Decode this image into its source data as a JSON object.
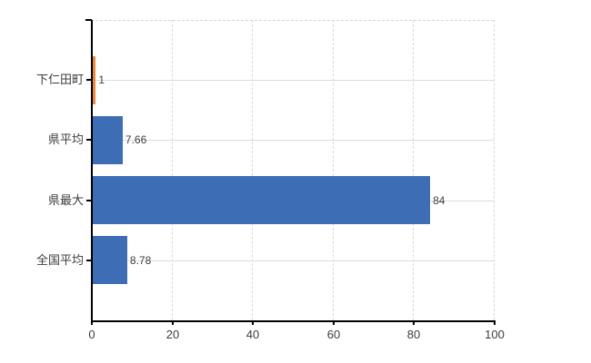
{
  "chart_data": {
    "type": "bar",
    "orientation": "horizontal",
    "title": "",
    "xlabel": "",
    "ylabel": "",
    "categories": [
      "下仁田町",
      "県平均",
      "県最大",
      "全国平均"
    ],
    "values": [
      1,
      7.66,
      84,
      8.78
    ],
    "value_labels": [
      "1",
      "7.66",
      "84",
      "8.78"
    ],
    "bar_colors": [
      "#ee8632",
      "#3d6db4",
      "#3d6db4",
      "#3d6db4"
    ],
    "xlim": [
      0,
      100
    ],
    "x_ticks": [
      0,
      20,
      40,
      60,
      80,
      100
    ],
    "x_tick_labels": [
      "0",
      "20",
      "40",
      "60",
      "80",
      "100"
    ],
    "grid": "on",
    "legend": "none"
  },
  "colors": {
    "bar_blue": "#3d6db4",
    "bar_orange": "#ee8632",
    "gridline_dashed": "#d8d8d8",
    "gridline_solid": "#dcdcdc",
    "axis": "#000000",
    "text": "#3c3c3c",
    "background": "#ffffff"
  }
}
